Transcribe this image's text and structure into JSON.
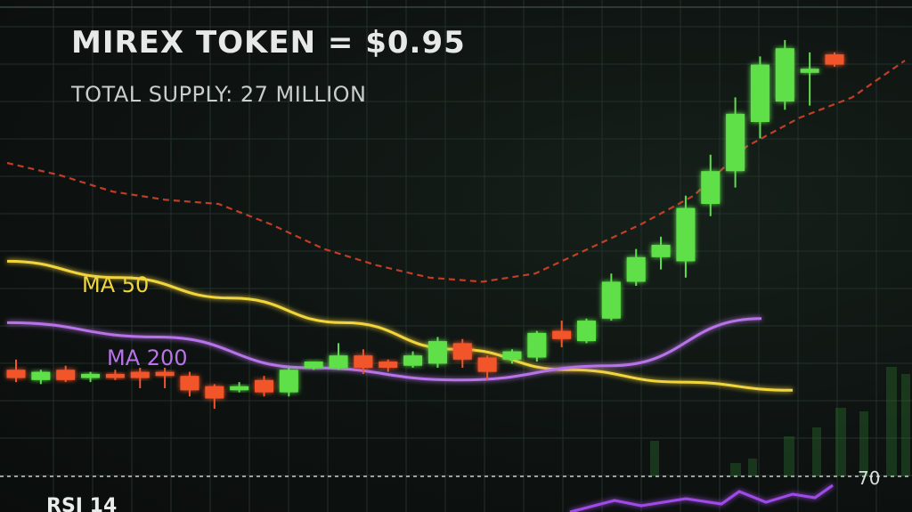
{
  "header": {
    "title": "MIREX TOKEN = $0.95",
    "subtitle": "TOTAL SUPPLY: 27 MILLION"
  },
  "chart_data": {
    "type": "candlestick",
    "title": "MIREX TOKEN = $0.95",
    "subtitle": "TOTAL SUPPLY: 27 MILLION",
    "xlabel": "",
    "ylabel": "",
    "ylim": [
      0,
      1
    ],
    "grid": true,
    "colors": {
      "up": "#5ee04a",
      "down": "#f2552c",
      "ma50": "#f2d53c",
      "ma200": "#b873e8",
      "band": "#e0442a",
      "rsi": "#a04ce8"
    },
    "candles": [
      {
        "o": 0.195,
        "h": 0.22,
        "c": 0.175,
        "l": 0.165
      },
      {
        "o": 0.17,
        "h": 0.195,
        "c": 0.19,
        "l": 0.16
      },
      {
        "o": 0.195,
        "h": 0.205,
        "c": 0.17,
        "l": 0.165
      },
      {
        "o": 0.175,
        "h": 0.19,
        "c": 0.185,
        "l": 0.165
      },
      {
        "o": 0.185,
        "h": 0.195,
        "c": 0.175,
        "l": 0.17
      },
      {
        "o": 0.19,
        "h": 0.2,
        "c": 0.175,
        "l": 0.15
      },
      {
        "o": 0.19,
        "h": 0.2,
        "c": 0.18,
        "l": 0.15
      },
      {
        "o": 0.18,
        "h": 0.19,
        "c": 0.145,
        "l": 0.13
      },
      {
        "o": 0.155,
        "h": 0.16,
        "c": 0.125,
        "l": 0.1
      },
      {
        "o": 0.145,
        "h": 0.165,
        "c": 0.155,
        "l": 0.14
      },
      {
        "o": 0.17,
        "h": 0.18,
        "c": 0.14,
        "l": 0.13
      },
      {
        "o": 0.14,
        "h": 0.2,
        "c": 0.195,
        "l": 0.13
      },
      {
        "o": 0.2,
        "h": 0.215,
        "c": 0.215,
        "l": 0.195
      },
      {
        "o": 0.2,
        "h": 0.26,
        "c": 0.23,
        "l": 0.195
      },
      {
        "o": 0.23,
        "h": 0.245,
        "c": 0.2,
        "l": 0.185
      },
      {
        "o": 0.215,
        "h": 0.22,
        "c": 0.2,
        "l": 0.19
      },
      {
        "o": 0.205,
        "h": 0.24,
        "c": 0.23,
        "l": 0.2
      },
      {
        "o": 0.21,
        "h": 0.275,
        "c": 0.265,
        "l": 0.2
      },
      {
        "o": 0.26,
        "h": 0.27,
        "c": 0.22,
        "l": 0.2
      },
      {
        "o": 0.225,
        "h": 0.23,
        "c": 0.19,
        "l": 0.17
      },
      {
        "o": 0.22,
        "h": 0.245,
        "c": 0.24,
        "l": 0.21
      },
      {
        "o": 0.225,
        "h": 0.29,
        "c": 0.285,
        "l": 0.215
      },
      {
        "o": 0.29,
        "h": 0.315,
        "c": 0.27,
        "l": 0.25
      },
      {
        "o": 0.265,
        "h": 0.32,
        "c": 0.315,
        "l": 0.26
      },
      {
        "o": 0.32,
        "h": 0.43,
        "c": 0.41,
        "l": 0.315
      },
      {
        "o": 0.41,
        "h": 0.49,
        "c": 0.47,
        "l": 0.4
      },
      {
        "o": 0.47,
        "h": 0.52,
        "c": 0.5,
        "l": 0.44
      },
      {
        "o": 0.46,
        "h": 0.62,
        "c": 0.59,
        "l": 0.42
      },
      {
        "o": 0.6,
        "h": 0.72,
        "c": 0.68,
        "l": 0.57
      },
      {
        "o": 0.68,
        "h": 0.86,
        "c": 0.82,
        "l": 0.64
      },
      {
        "o": 0.8,
        "h": 0.96,
        "c": 0.94,
        "l": 0.76
      },
      {
        "o": 0.85,
        "h": 1.0,
        "c": 0.98,
        "l": 0.83
      },
      {
        "o": 0.92,
        "h": 0.97,
        "c": 0.93,
        "l": 0.84
      },
      {
        "o": 0.965,
        "h": 0.97,
        "c": 0.94,
        "l": 0.935
      }
    ],
    "series": [
      {
        "name": "MA 50",
        "values": [
          0.46,
          0.42,
          0.37,
          0.31,
          0.245,
          0.195,
          0.165,
          0.145
        ]
      },
      {
        "name": "MA 200",
        "values": [
          0.31,
          0.275,
          0.2,
          0.17,
          0.205,
          0.32
        ]
      }
    ],
    "band": [
      0.7,
      0.67,
      0.63,
      0.61,
      0.6,
      0.55,
      0.49,
      0.45,
      0.42,
      0.41,
      0.43,
      0.49,
      0.55,
      0.62,
      0.74,
      0.81,
      0.86,
      0.95
    ],
    "rsi": {
      "label": "RSI 14",
      "level": "70"
    }
  }
}
